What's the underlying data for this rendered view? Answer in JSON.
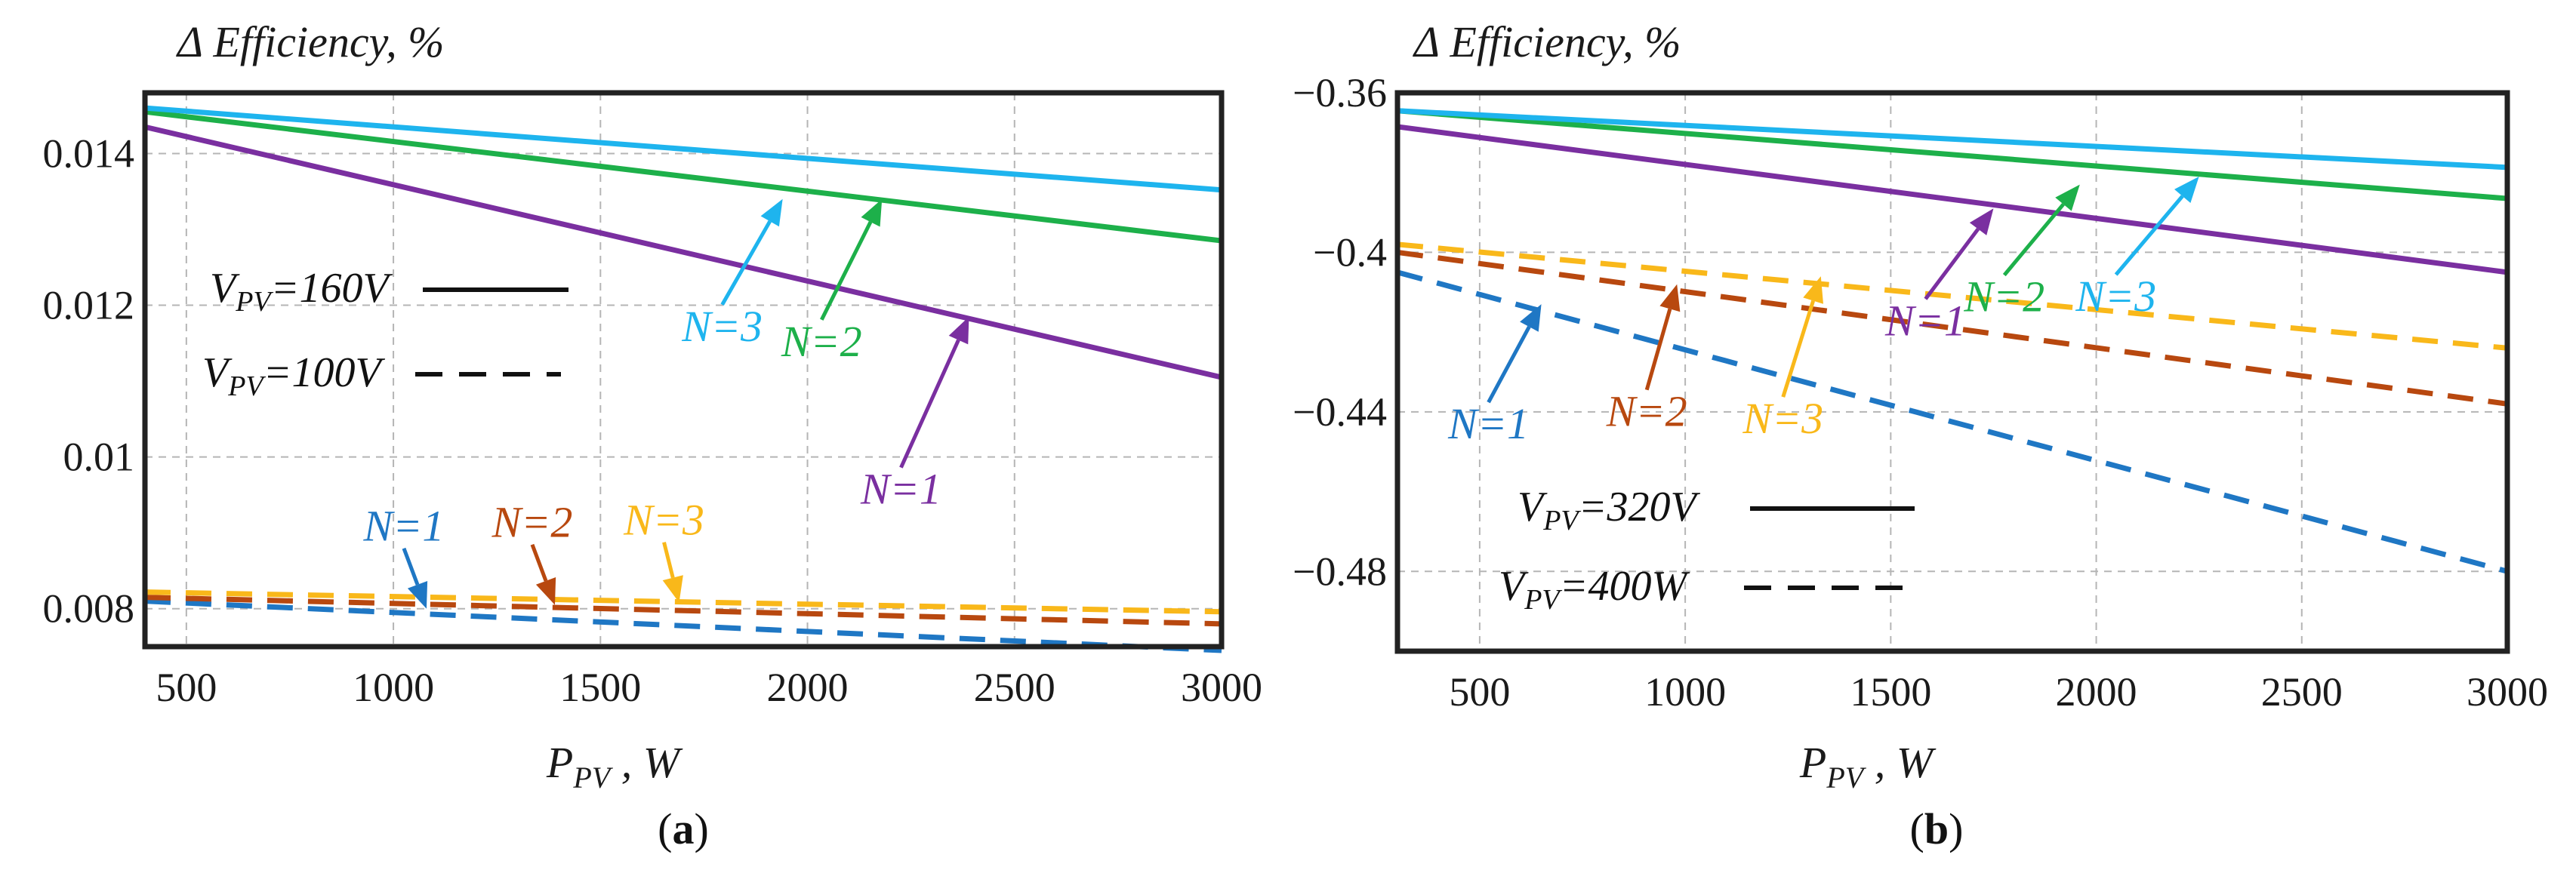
{
  "chart_data": [
    {
      "panel": "a",
      "panel_label": "(a)",
      "panel_label_open": "(",
      "panel_label_letter": "a",
      "panel_label_close": ")",
      "type": "line",
      "ylabel": "Δ Efficiency, %",
      "xlabel": "P_PV , W",
      "xlabel_main": "P",
      "xlabel_sub": "PV",
      "xlabel_unit": " , W",
      "xlim": [
        400,
        3000
      ],
      "ylim": [
        0.0075,
        0.0148
      ],
      "xticks": [
        500,
        1000,
        1500,
        2000,
        2500,
        3000
      ],
      "yticks": [
        0.008,
        0.01,
        0.012,
        0.014
      ],
      "ytick_labels": [
        "0.008",
        "0.01",
        "0.012",
        "0.014"
      ],
      "grid": true,
      "series": [
        {
          "name": "N=1",
          "group": "VPV=160V",
          "style": "solid",
          "color": "#7a2fa0",
          "x": [
            400,
            3000
          ],
          "y": [
            0.01435,
            0.01105
          ]
        },
        {
          "name": "N=2",
          "group": "VPV=160V",
          "style": "solid",
          "color": "#1db04a",
          "x": [
            400,
            3000
          ],
          "y": [
            0.01455,
            0.01285
          ]
        },
        {
          "name": "N=3",
          "group": "VPV=160V",
          "style": "solid",
          "color": "#1eb4ee",
          "x": [
            400,
            3000
          ],
          "y": [
            0.0146,
            0.01352
          ]
        },
        {
          "name": "N=1",
          "group": "VPV=100V",
          "style": "dashed",
          "color": "#1f77c4",
          "x": [
            400,
            3000
          ],
          "y": [
            0.0081,
            0.00745
          ]
        },
        {
          "name": "N=2",
          "group": "VPV=100V",
          "style": "dashed",
          "color": "#b8480f",
          "x": [
            400,
            3000
          ],
          "y": [
            0.00815,
            0.0078
          ]
        },
        {
          "name": "N=3",
          "group": "VPV=100V",
          "style": "dashed",
          "color": "#f9b81a",
          "x": [
            400,
            3000
          ],
          "y": [
            0.00822,
            0.00796
          ]
        }
      ],
      "legend": [
        {
          "main": "V",
          "sub": "PV",
          "rest": "=160V",
          "style": "solid"
        },
        {
          "main": "V",
          "sub": "PV",
          "rest": "=100V",
          "style": "dashed"
        }
      ],
      "annotations": [
        {
          "text": "N=3",
          "color": "#1eb4ee",
          "tx": 1940,
          "ty": 0.0134
        },
        {
          "text": "N=2",
          "color": "#1db04a",
          "tx": 2180,
          "ty": 0.0134
        },
        {
          "text": "N=1",
          "color": "#7a2fa0",
          "tx": 2390,
          "ty": 0.01185
        },
        {
          "text": "N=1",
          "color": "#1f77c4",
          "tx": 1080,
          "ty": 0.008
        },
        {
          "text": "N=2",
          "color": "#b8480f",
          "tx": 1390,
          "ty": 0.00805
        },
        {
          "text": "N=3",
          "color": "#f9b81a",
          "tx": 1690,
          "ty": 0.00808
        }
      ]
    },
    {
      "panel": "b",
      "panel_label": "(b)",
      "panel_label_open": "(",
      "panel_label_letter": "b",
      "panel_label_close": ")",
      "type": "line",
      "ylabel": "Δ Efficiency, %",
      "xlabel": "P_PV , W",
      "xlabel_main": "P",
      "xlabel_sub": "PV",
      "xlabel_unit": " , W",
      "xlim": [
        300,
        3000
      ],
      "ylim": [
        -0.5,
        -0.36
      ],
      "xticks": [
        500,
        1000,
        1500,
        2000,
        2500,
        3000
      ],
      "yticks": [
        -0.48,
        -0.44,
        -0.4,
        -0.36
      ],
      "ytick_labels": [
        "−0.48",
        "−0.44",
        "−0.4",
        "−0.36"
      ],
      "grid": true,
      "series": [
        {
          "name": "N=1",
          "group": "VPV=320V",
          "style": "solid",
          "color": "#7a2fa0",
          "x": [
            300,
            3000
          ],
          "y": [
            -0.3685,
            -0.405
          ]
        },
        {
          "name": "N=2",
          "group": "VPV=320V",
          "style": "solid",
          "color": "#1db04a",
          "x": [
            300,
            3000
          ],
          "y": [
            -0.3645,
            -0.3865
          ]
        },
        {
          "name": "N=3",
          "group": "VPV=320V",
          "style": "solid",
          "color": "#1eb4ee",
          "x": [
            300,
            3000
          ],
          "y": [
            -0.3645,
            -0.3787
          ]
        },
        {
          "name": "N=1",
          "group": "VPV=400W",
          "style": "dashed",
          "color": "#1f77c4",
          "x": [
            300,
            3000
          ],
          "y": [
            -0.405,
            -0.48
          ]
        },
        {
          "name": "N=2",
          "group": "VPV=400W",
          "style": "dashed",
          "color": "#b8480f",
          "x": [
            300,
            3000
          ],
          "y": [
            -0.4,
            -0.438
          ]
        },
        {
          "name": "N=3",
          "group": "VPV=400W",
          "style": "dashed",
          "color": "#f9b81a",
          "x": [
            300,
            3000
          ],
          "y": [
            -0.398,
            -0.424
          ]
        }
      ],
      "legend": [
        {
          "main": "V",
          "sub": "PV",
          "rest": "=320V",
          "style": "solid"
        },
        {
          "main": "V",
          "sub": "PV",
          "rest": "=400W",
          "style": "dashed"
        }
      ],
      "annotations": [
        {
          "text": "N=1",
          "color": "#1f77c4",
          "tx": 650,
          "ty": -0.413
        },
        {
          "text": "N=2",
          "color": "#b8480f",
          "tx": 980,
          "ty": -0.408
        },
        {
          "text": "N=3",
          "color": "#f9b81a",
          "tx": 1330,
          "ty": -0.406
        },
        {
          "text": "N=1",
          "color": "#7a2fa0",
          "tx": 1750,
          "ty": -0.389
        },
        {
          "text": "N=2",
          "color": "#1db04a",
          "tx": 1960,
          "ty": -0.383
        },
        {
          "text": "N=3",
          "color": "#1eb4ee",
          "tx": 2250,
          "ty": -0.381
        }
      ]
    }
  ]
}
